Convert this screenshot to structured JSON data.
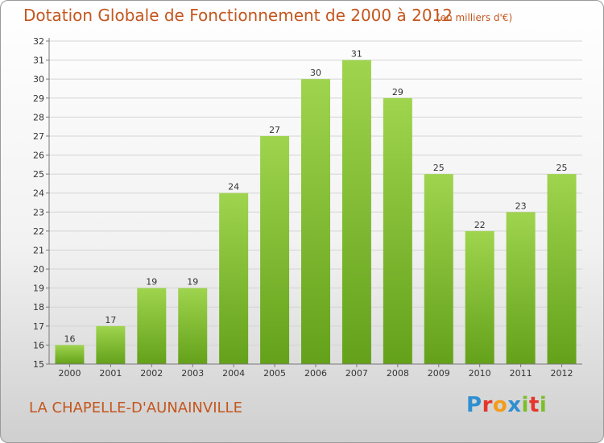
{
  "colors": {
    "accent": "#c4561e",
    "bar_light": "#9fd44e",
    "bar_dark": "#64a11a",
    "grid": "#d4d4d4"
  },
  "chart_data": {
    "type": "bar",
    "title": "Dotation Globale de Fonctionnement de 2000 à 2012",
    "subtitle": "(en milliers d'€)",
    "categories": [
      "2000",
      "2001",
      "2002",
      "2003",
      "2004",
      "2005",
      "2006",
      "2007",
      "2008",
      "2009",
      "2010",
      "2011",
      "2012"
    ],
    "values": [
      16,
      17,
      19,
      19,
      24,
      27,
      30,
      31,
      29,
      25,
      22,
      23,
      25
    ],
    "ylim": [
      15,
      32
    ],
    "yticks": [
      15,
      16,
      17,
      18,
      19,
      20,
      21,
      22,
      23,
      24,
      25,
      26,
      27,
      28,
      29,
      30,
      31,
      32
    ],
    "xlabel": "",
    "ylabel": "",
    "grid": true
  },
  "footer": {
    "commune": "LA CHAPELLE-D'AUNAINVILLE",
    "logo_letters": [
      {
        "char": "P",
        "color": "#2f8fd1"
      },
      {
        "char": "r",
        "color": "#e5352b"
      },
      {
        "char": "o",
        "color": "#f39b1b"
      },
      {
        "char": "x",
        "color": "#2f8fd1"
      },
      {
        "char": "i",
        "color": "#7cbf2a"
      },
      {
        "char": "t",
        "color": "#e5352b"
      },
      {
        "char": "i",
        "color": "#7cbf2a"
      }
    ]
  }
}
